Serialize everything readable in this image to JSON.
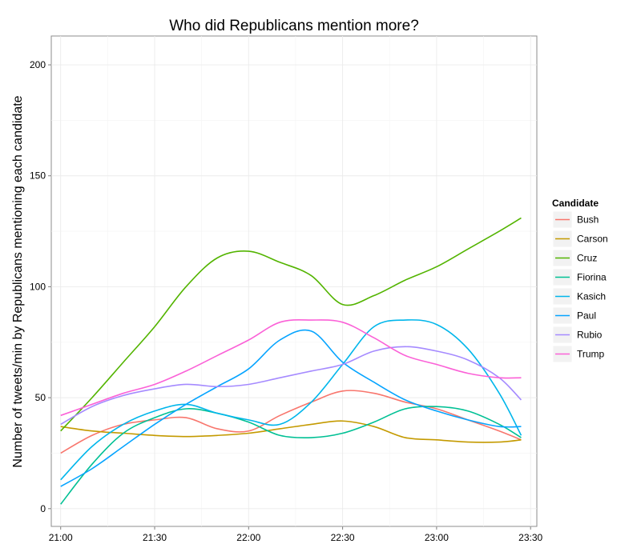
{
  "chart_data": {
    "type": "line",
    "title": "Who did Republicans mention more?",
    "xlabel": "",
    "ylabel": "Number of tweets/min by Republicans mentioning each candidate",
    "xlim": [
      "20:57",
      "23:32"
    ],
    "ylim": [
      -8,
      213
    ],
    "x_ticks": [
      "21:00",
      "21:30",
      "22:00",
      "22:30",
      "23:00",
      "23:30"
    ],
    "y_ticks": [
      0,
      50,
      100,
      150,
      200
    ],
    "grid": true,
    "legend": {
      "title": "Candidate",
      "position": "right"
    },
    "x": [
      "21:00",
      "21:10",
      "21:20",
      "21:30",
      "21:40",
      "21:50",
      "22:00",
      "22:10",
      "22:20",
      "22:30",
      "22:40",
      "22:50",
      "23:00",
      "23:10",
      "23:20",
      "23:27"
    ],
    "series": [
      {
        "name": "Bush",
        "color": "#F8766D",
        "values": [
          25,
          33,
          38,
          40,
          41,
          36,
          35,
          42,
          48,
          53,
          52,
          48,
          45,
          40,
          35,
          31
        ]
      },
      {
        "name": "Carson",
        "color": "#C49A00",
        "values": [
          37,
          35,
          34,
          33,
          32.5,
          33,
          34,
          36,
          38,
          39.5,
          37,
          32,
          31,
          30,
          30,
          31
        ]
      },
      {
        "name": "Cruz",
        "color": "#53B400",
        "values": [
          35,
          50,
          66,
          82,
          100,
          113,
          116,
          111,
          105,
          92,
          96,
          103,
          109,
          117,
          125,
          131
        ]
      },
      {
        "name": "Fiorina",
        "color": "#00C094",
        "values": [
          2,
          20,
          34,
          41,
          45,
          43,
          39,
          33,
          32,
          34,
          39,
          45,
          46,
          44,
          38,
          32
        ]
      },
      {
        "name": "Kasich",
        "color": "#00B6EB",
        "values": [
          13,
          28,
          38,
          44,
          47,
          43,
          40,
          38,
          48,
          65,
          82,
          85,
          83,
          72,
          52,
          33
        ]
      },
      {
        "name": "Paul",
        "color": "#06A4FF",
        "values": [
          10,
          18,
          28,
          38,
          47,
          55,
          63,
          76,
          80,
          66,
          57,
          49,
          44,
          40,
          37,
          37
        ]
      },
      {
        "name": "Rubio",
        "color": "#A58AFF",
        "values": [
          38,
          46,
          51,
          54,
          56,
          55,
          56,
          59,
          62,
          65,
          71,
          73,
          71,
          67,
          59,
          49
        ]
      },
      {
        "name": "Trump",
        "color": "#FB61D7",
        "values": [
          42,
          47,
          52,
          56,
          62,
          69,
          76,
          84,
          85,
          84,
          77,
          69,
          65,
          61,
          59,
          59
        ]
      }
    ]
  }
}
